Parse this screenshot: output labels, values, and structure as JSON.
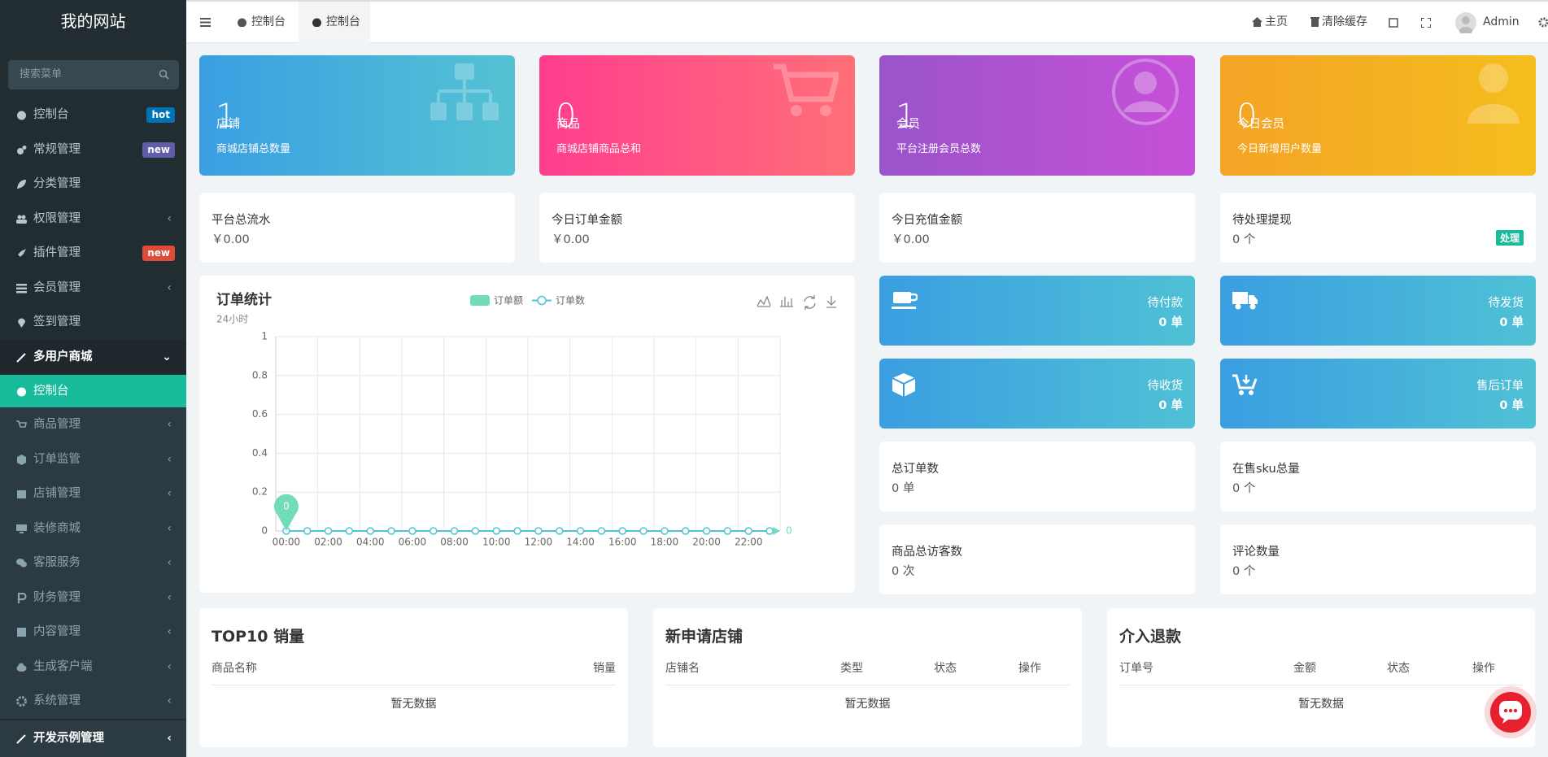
{
  "sidebar": {
    "title": "我的网站",
    "search_placeholder": "搜索菜单",
    "menu": [
      {
        "label": "控制台",
        "badge": "hot"
      },
      {
        "label": "常规管理",
        "badge": "new"
      },
      {
        "label": "分类管理"
      },
      {
        "label": "权限管理"
      },
      {
        "label": "插件管理",
        "badge": "new"
      },
      {
        "label": "会员管理"
      },
      {
        "label": "签到管理"
      },
      {
        "label": "多用户商城"
      }
    ],
    "submenu": [
      "控制台",
      "商品管理",
      "订单监管",
      "店铺管理",
      "装修商城",
      "客服服务",
      "财务管理",
      "内容管理",
      "生成客户端",
      "系统管理"
    ],
    "last_item": "开发示例管理"
  },
  "topbar": {
    "tabs": [
      "控制台",
      "控制台"
    ],
    "links": [
      "主页",
      "清除缓存"
    ],
    "user": "Admin"
  },
  "stat_cards": [
    {
      "label": "店铺",
      "value": 1,
      "caption": "商城店铺总数量"
    },
    {
      "label": "商品",
      "value": 0,
      "caption": "商城店铺商品总和"
    },
    {
      "label": "会员",
      "value": 1,
      "caption": "平台注册会员总数"
    },
    {
      "label": "今日会员",
      "value": 0,
      "caption": "今日新增用户数量"
    }
  ],
  "info_cards": [
    {
      "label": "平台总流水",
      "value": "￥0.00"
    },
    {
      "label": "今日订单金额",
      "value": "￥0.00"
    },
    {
      "label": "今日充值金额",
      "value": "￥0.00"
    },
    {
      "label": "待处理提现",
      "value": "0 个",
      "badge": "处理"
    }
  ],
  "order_cards": [
    {
      "label": "待付款",
      "value": "0 单"
    },
    {
      "label": "待发货",
      "value": "0 单"
    },
    {
      "label": "待收货",
      "value": "0 单"
    },
    {
      "label": "售后订单",
      "value": "0 单"
    }
  ],
  "count_cards": [
    {
      "label": "总订单数",
      "value": "0 单"
    },
    {
      "label": "在售sku总量",
      "value": "0 个"
    },
    {
      "label": "商品总访客数",
      "value": "0 次"
    },
    {
      "label": "评论数量",
      "value": "0 个"
    }
  ],
  "chart_data": {
    "type": "line",
    "title": "订单统计",
    "subtitle": "24小时",
    "categories": [
      "00:00",
      null,
      "02:00",
      null,
      "04:00",
      null,
      "06:00",
      null,
      "08:00",
      null,
      "10:00",
      null,
      "12:00",
      null,
      "14:00",
      null,
      "16:00",
      null,
      "18:00",
      null,
      "20:00",
      null,
      "22:00",
      null
    ],
    "series": [
      {
        "name": "订单额",
        "color": "#72dcb8",
        "values": [
          0,
          0,
          0,
          0,
          0,
          0,
          0,
          0,
          0,
          0,
          0,
          0,
          0,
          0,
          0,
          0,
          0,
          0,
          0,
          0,
          0,
          0,
          0,
          0
        ]
      },
      {
        "name": "订单数",
        "color": "#4fc3d8",
        "values": [
          0,
          0,
          0,
          0,
          0,
          0,
          0,
          0,
          0,
          0,
          0,
          0,
          0,
          0,
          0,
          0,
          0,
          0,
          0,
          0,
          0,
          0,
          0,
          0
        ]
      }
    ],
    "ylim": [
      0,
      1
    ],
    "yticks": [
      0,
      0.2,
      0.4,
      0.6,
      0.8,
      1
    ],
    "grid": true
  },
  "tables": [
    {
      "title": "TOP10 销量",
      "columns": [
        "商品名称",
        "销量"
      ],
      "empty": "暂无数据"
    },
    {
      "title": "新申请店铺",
      "columns": [
        "店铺名",
        "类型",
        "状态",
        "操作"
      ],
      "empty": "暂无数据"
    },
    {
      "title": "介入退款",
      "columns": [
        "订单号",
        "金额",
        "状态",
        "操作"
      ],
      "empty": "暂无数据"
    }
  ]
}
